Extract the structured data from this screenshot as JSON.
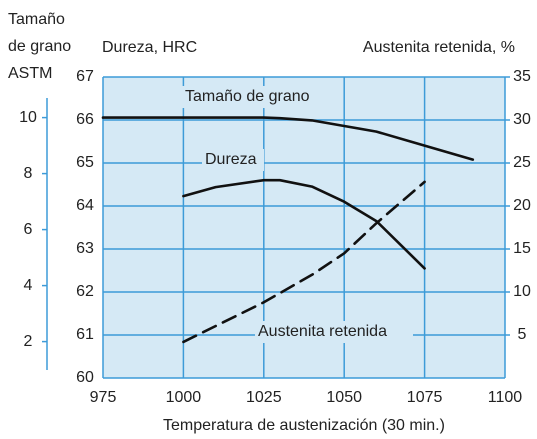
{
  "chart_data": {
    "type": "line",
    "x_label": "Temperatura de austenización (30 min.)",
    "y_label": "Dureza, HRC",
    "y2_label": "Austenita retenida, %",
    "y3_label": [
      "Tamaño",
      "de grano",
      "ASTM"
    ],
    "annotations": [
      "Tamaño de grano",
      "Dureza",
      "Austenita retenida"
    ],
    "xlim": [
      975,
      1100
    ],
    "xticks": [
      975,
      1000,
      1025,
      1050,
      1075,
      1100
    ],
    "ylim": [
      60,
      67
    ],
    "yticks": [
      60,
      61,
      62,
      63,
      64,
      65,
      66,
      67
    ],
    "y2lim": [
      0,
      35
    ],
    "y2ticks": [
      5,
      10,
      15,
      20,
      25,
      30,
      35
    ],
    "y3lim": [
      0.7,
      11.45
    ],
    "y3ticks": [
      2,
      4,
      6,
      8,
      10
    ],
    "grid": true,
    "background": "#d5e9f5",
    "grid_color": "#3d9bd8",
    "series": [
      {
        "name": "Tamaño de grano",
        "axis": "y3",
        "color": "#111111",
        "style": "solid",
        "x": [
          975,
          1000,
          1025,
          1030,
          1040,
          1050,
          1060,
          1075,
          1090
        ],
        "values": [
          10,
          10,
          10,
          9.98,
          9.9,
          9.7,
          9.5,
          9.0,
          8.5
        ]
      },
      {
        "name": "Dureza",
        "axis": "y",
        "color": "#111111",
        "style": "solid",
        "x": [
          1000,
          1010,
          1025,
          1030,
          1040,
          1050,
          1060,
          1075
        ],
        "values": [
          64.23,
          64.44,
          64.6,
          64.6,
          64.45,
          64.1,
          63.65,
          62.55
        ]
      },
      {
        "name": "Austenita retenida",
        "axis": "y2",
        "color": "#111111",
        "style": "dashed",
        "x": [
          1000,
          1025,
          1040,
          1050,
          1060,
          1075
        ],
        "values": [
          4.2,
          8.8,
          12,
          14.5,
          18,
          22.8
        ]
      }
    ]
  }
}
